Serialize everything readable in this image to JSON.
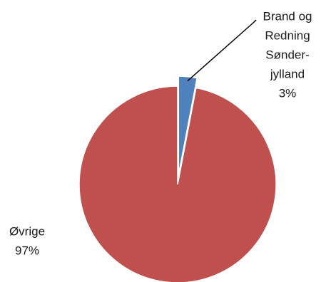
{
  "chart_data": {
    "type": "pie",
    "title": "",
    "slices": [
      {
        "label_lines": [
          "Brand og",
          "Redning",
          "Sønder-",
          "jylland"
        ],
        "percent_label": "3%",
        "value": 3,
        "color": "#4f81bd",
        "exploded": true
      },
      {
        "label_lines": [
          "Øvrige"
        ],
        "percent_label": "97%",
        "value": 97,
        "color": "#c0504d",
        "exploded": false
      }
    ],
    "legend": "none",
    "label_position": "outside"
  }
}
